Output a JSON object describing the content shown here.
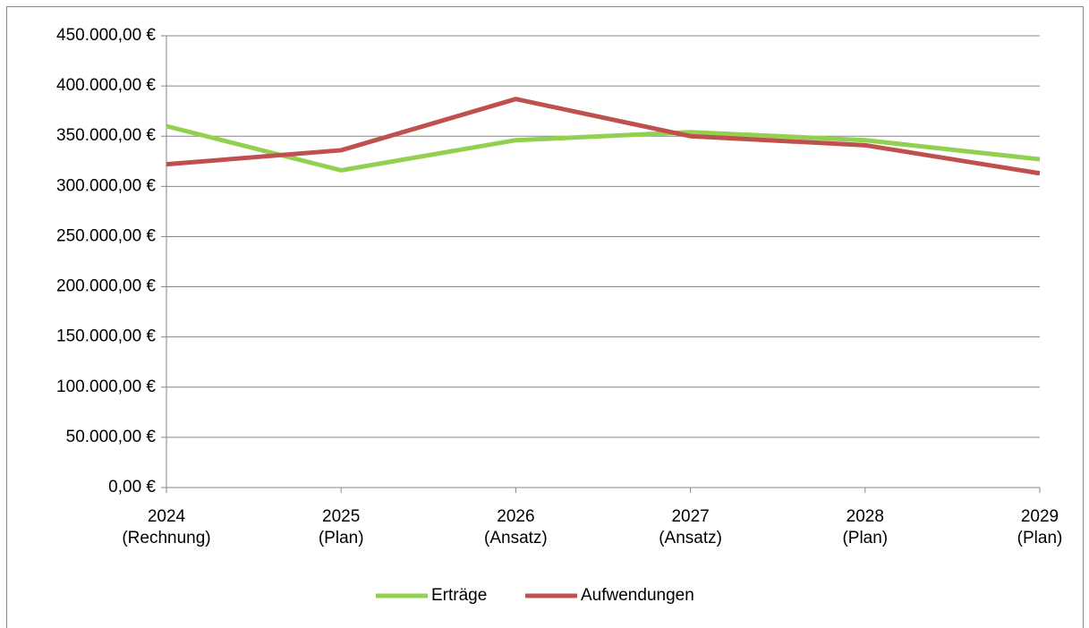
{
  "chart_data": {
    "type": "line",
    "categories": [
      "2024\n(Rechnung)",
      "2025\n(Plan)",
      "2026\n(Ansatz)",
      "2027\n(Ansatz)",
      "2028\n(Plan)",
      "2029\n(Plan)"
    ],
    "series": [
      {
        "name": "Erträge",
        "color": "#92d050",
        "values": [
          360000,
          316000,
          346000,
          354000,
          346000,
          327000
        ]
      },
      {
        "name": "Aufwendungen",
        "color": "#c0504d",
        "values": [
          322000,
          336000,
          387000,
          350000,
          341000,
          313000
        ]
      }
    ],
    "ylim": [
      0,
      450000
    ],
    "yticks": [
      {
        "value": 0,
        "label": "0,00 €"
      },
      {
        "value": 50000,
        "label": "50.000,00 €"
      },
      {
        "value": 100000,
        "label": "100.000,00 €"
      },
      {
        "value": 150000,
        "label": "150.000,00 €"
      },
      {
        "value": 200000,
        "label": "200.000,00 €"
      },
      {
        "value": 250000,
        "label": "250.000,00 €"
      },
      {
        "value": 300000,
        "label": "300.000,00 €"
      },
      {
        "value": 350000,
        "label": "350.000,00 €"
      },
      {
        "value": 400000,
        "label": "400.000,00 €"
      },
      {
        "value": 450000,
        "label": "450.000,00 €"
      }
    ],
    "grid": true,
    "legend": "bottom"
  }
}
